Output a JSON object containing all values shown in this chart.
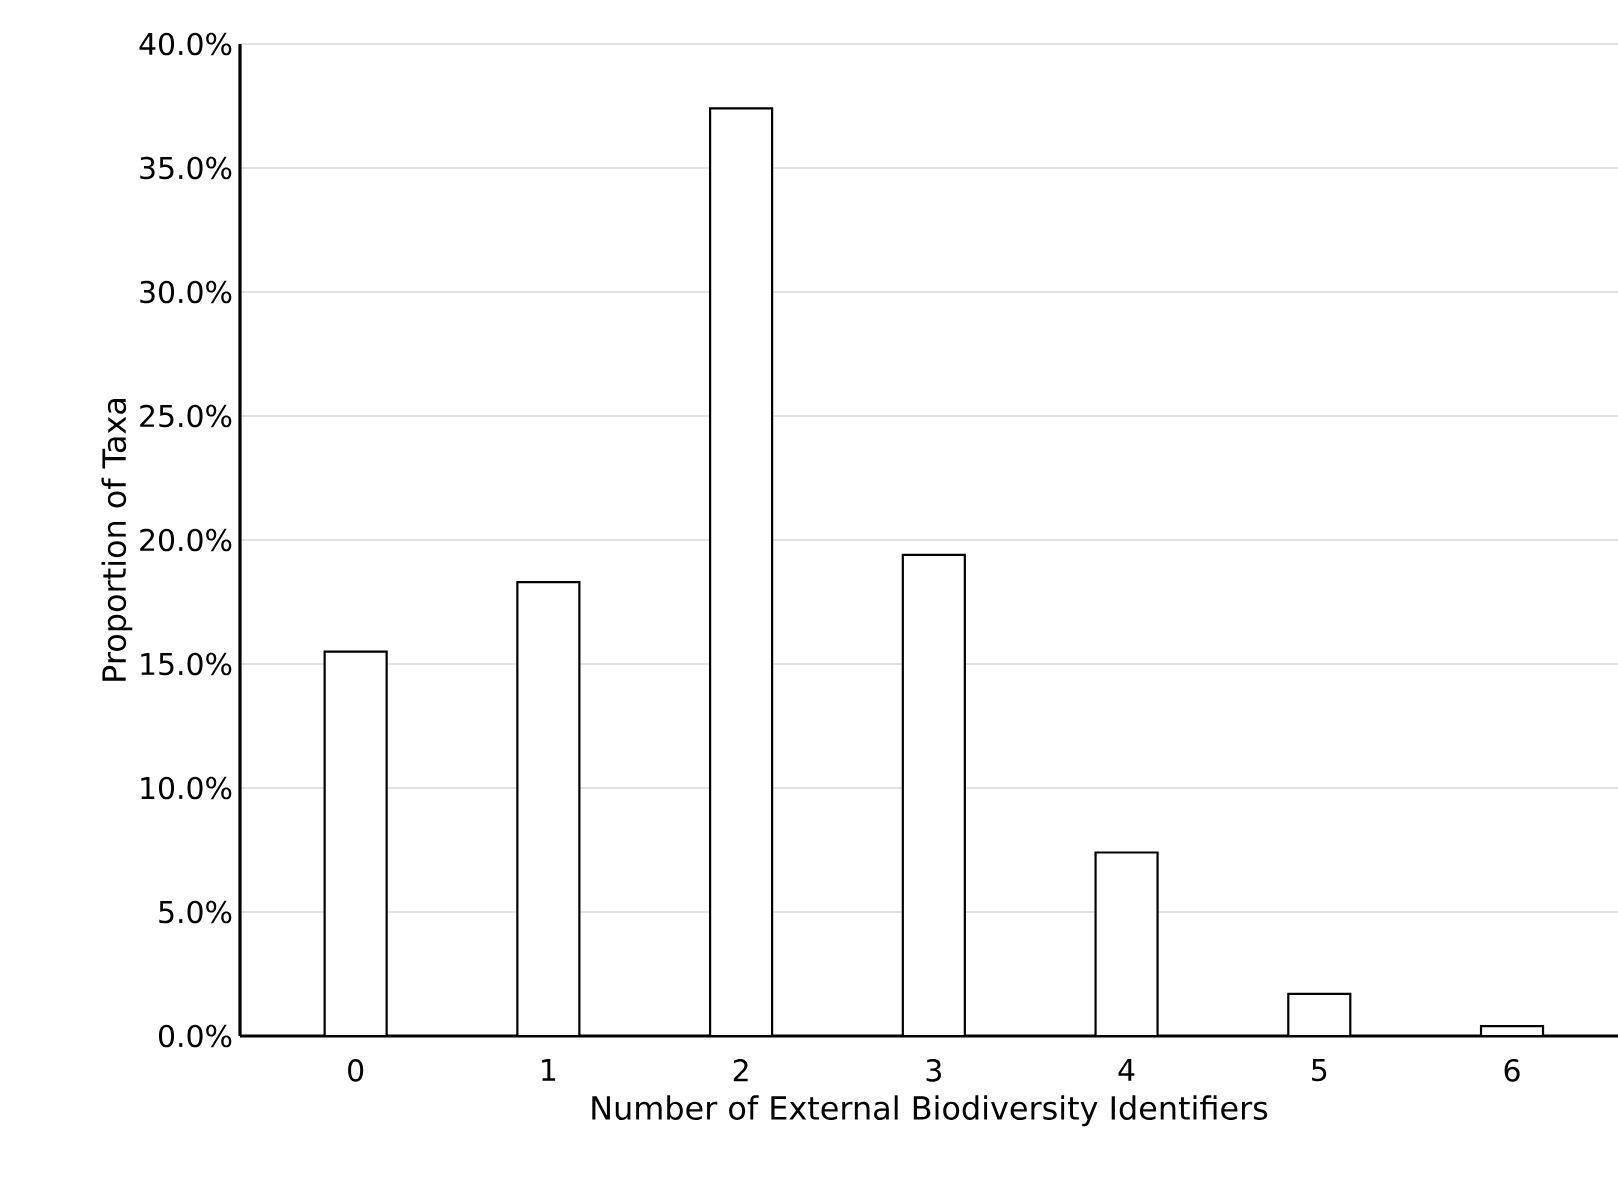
{
  "chart_data": {
    "type": "bar",
    "xlabel": "Number of External Biodiversity Identifiers",
    "ylabel": "Proportion of Taxa",
    "categories": [
      "0",
      "1",
      "2",
      "3",
      "4",
      "5",
      "6"
    ],
    "values": [
      15.5,
      18.3,
      37.4,
      19.4,
      7.4,
      1.7,
      0.4
    ],
    "color": "#ffffff",
    "ylim": [
      0,
      40
    ],
    "yticks": [
      {
        "value": 0,
        "label": "0.0%"
      },
      {
        "value": 5,
        "label": "5.0%"
      },
      {
        "value": 10,
        "label": "10.0%"
      },
      {
        "value": 15,
        "label": "15.0%"
      },
      {
        "value": 20,
        "label": "20.0%"
      },
      {
        "value": 25,
        "label": "25.0%"
      },
      {
        "value": 30,
        "label": "30.0%"
      },
      {
        "value": 35,
        "label": "35.0%"
      },
      {
        "value": 40,
        "label": "40.0%"
      }
    ],
    "grid": "y"
  }
}
